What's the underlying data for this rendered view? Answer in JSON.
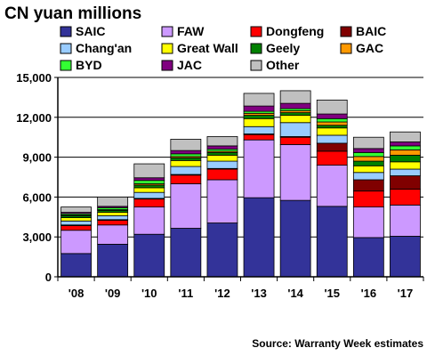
{
  "chart_data": {
    "type": "bar",
    "stacked": true,
    "title": "CN yuan millions",
    "source": "Source: Warranty Week estimates",
    "categories": [
      "'08",
      "'09",
      "'10",
      "'11",
      "'12",
      "'13",
      "'14",
      "'15",
      "'16",
      "'17"
    ],
    "ylim": [
      0,
      15000
    ],
    "yticks": [
      0,
      3000,
      6000,
      9000,
      12000,
      15000
    ],
    "ytick_labels": [
      "0",
      "3,000",
      "6,000",
      "9,000",
      "12,000",
      "15,000"
    ],
    "grid": true,
    "legend_position": "top",
    "series": [
      {
        "name": "SAIC",
        "color": "#333399",
        "values": [
          1750,
          2450,
          3200,
          3650,
          4050,
          5950,
          5750,
          5300,
          2950,
          3050
        ]
      },
      {
        "name": "FAW",
        "color": "#CC99FF",
        "values": [
          1750,
          1450,
          2050,
          3350,
          3250,
          4350,
          4200,
          3100,
          2300,
          2350
        ]
      },
      {
        "name": "Dongfeng",
        "color": "#FF0000",
        "values": [
          350,
          350,
          600,
          650,
          800,
          400,
          550,
          1050,
          1200,
          1200
        ]
      },
      {
        "name": "BAIC",
        "color": "#800000",
        "values": [
          50,
          50,
          50,
          50,
          50,
          50,
          50,
          600,
          850,
          1000
        ]
      },
      {
        "name": "Chang'an",
        "color": "#99CCFF",
        "values": [
          300,
          300,
          450,
          600,
          550,
          550,
          1050,
          600,
          550,
          500
        ]
      },
      {
        "name": "Great Wall",
        "color": "#FFFF00",
        "values": [
          250,
          250,
          350,
          450,
          450,
          600,
          550,
          550,
          500,
          550
        ]
      },
      {
        "name": "Geely",
        "color": "#008000",
        "values": [
          150,
          150,
          200,
          200,
          200,
          250,
          200,
          200,
          350,
          500
        ]
      },
      {
        "name": "GAC",
        "color": "#FF9900",
        "values": [
          50,
          50,
          100,
          100,
          100,
          150,
          150,
          250,
          350,
          400
        ]
      },
      {
        "name": "BYD",
        "color": "#33FF33",
        "values": [
          100,
          150,
          250,
          200,
          150,
          150,
          150,
          250,
          300,
          300
        ]
      },
      {
        "name": "JAC",
        "color": "#800080",
        "values": [
          100,
          100,
          200,
          250,
          250,
          400,
          400,
          350,
          300,
          300
        ]
      },
      {
        "name": "Other",
        "color": "#C0C0C0",
        "values": [
          400,
          700,
          1050,
          850,
          700,
          950,
          950,
          1050,
          850,
          750
        ]
      }
    ]
  }
}
